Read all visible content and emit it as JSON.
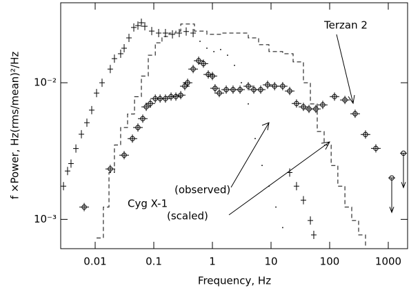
{
  "chart_data": {
    "type": "scatter",
    "xlabel": "Frequency, Hz",
    "ylabel": "f ×Power, Hz(rms/mean)²/Hz",
    "annotations": [
      "Terzan 2",
      "Cyg X-1",
      "(observed)",
      "(scaled)"
    ],
    "xscale": "log",
    "yscale": "log",
    "xlim": [
      0.00258,
      2135
    ],
    "ylim": [
      0.00061,
      0.0385
    ],
    "xticks": [
      0.01,
      0.1,
      1,
      10,
      100,
      1000
    ],
    "yticks": [
      {
        "value": 0.01,
        "label": "10⁻²"
      },
      {
        "value": 0.001,
        "label": "10⁻³"
      }
    ],
    "series": [
      {
        "marker": "plus",
        "color": "#000",
        "x": [
          0.00288,
          0.00338,
          0.00387,
          0.00469,
          0.00582,
          0.00722,
          0.00873,
          0.01056,
          0.0131,
          0.0181,
          0.0213,
          0.0272,
          0.0312,
          0.0377,
          0.0456,
          0.0536,
          0.0614,
          0.0703,
          0.0922,
          0.121,
          0.158,
          0.208,
          0.272,
          0.357,
          0.469
        ],
        "values": [
          0.00175,
          0.00226,
          0.00256,
          0.0033,
          0.0042,
          0.0051,
          0.0063,
          0.0084,
          0.01,
          0.0126,
          0.015,
          0.0163,
          0.0179,
          0.0213,
          0.0254,
          0.0262,
          0.0275,
          0.0259,
          0.0239,
          0.0231,
          0.0231,
          0.0226,
          0.0231,
          0.0237,
          0.0231
        ]
      },
      {
        "marker": "dot",
        "color": "#000",
        "x": [
          0.614,
          0.805,
          1.06,
          1.38,
          1.81,
          2.38,
          3.12,
          4.09,
          5.36,
          7.03,
          9.22,
          12.1,
          15.8
        ],
        "values": [
          0.0201,
          0.0179,
          0.0169,
          0.0175,
          0.0159,
          0.0134,
          0.01,
          0.007,
          0.0039,
          0.00248,
          0.00175,
          0.00123,
          0.00087
        ]
      },
      {
        "marker": "plus",
        "color": "#000",
        "x": [
          20.8,
          27.2,
          35.7,
          46.9,
          53.6
        ],
        "values": [
          0.0022,
          0.00175,
          0.00138,
          0.00098,
          0.00077
        ]
      },
      {
        "marker": "step",
        "color": "#000",
        "x": [
          0.01056,
          0.0138,
          0.0172,
          0.0213,
          0.0272,
          0.0357,
          0.0469,
          0.0614,
          0.0805,
          0.106,
          0.138,
          0.182,
          0.238,
          0.288,
          0.377,
          0.494,
          0.805,
          1.38,
          2.38,
          4.09,
          6.14,
          9.22,
          15.8,
          23.8,
          35.7,
          46.9,
          61.4,
          80.5,
          106,
          138,
          182,
          238,
          312,
          409
        ],
        "values": [
          0.00073,
          0.00123,
          0.0022,
          0.0035,
          0.0047,
          0.0059,
          0.0079,
          0.0112,
          0.0159,
          0.0196,
          0.0218,
          0.0231,
          0.0239,
          0.0269,
          0.0269,
          0.0239,
          0.0226,
          0.0231,
          0.0231,
          0.0213,
          0.019,
          0.0169,
          0.0163,
          0.0142,
          0.01,
          0.007,
          0.0044,
          0.0035,
          0.00248,
          0.00175,
          0.00123,
          0.00098,
          0.00077,
          0.0006
        ]
      },
      {
        "marker": "circle",
        "color": "#000",
        "x": [
          0.00649,
          0.0181,
          0.0312,
          0.0432,
          0.0536,
          0.0648,
          0.0743,
          0.0873,
          0.106,
          0.128,
          0.158,
          0.197,
          0.238,
          0.288,
          0.338,
          0.377,
          0.469,
          0.582,
          0.703,
          0.85,
          1.0,
          1.11,
          1.31,
          1.72,
          2.25,
          2.96,
          4.09,
          5.08,
          6.66,
          8.73,
          11.5,
          15.8,
          20.8,
          27.2,
          35.7,
          44.4,
          58.2,
          76.2,
          121,
          182,
          272,
          409,
          614
        ],
        "values": [
          0.00123,
          0.00234,
          0.00295,
          0.0039,
          0.0047,
          0.00546,
          0.00666,
          0.00705,
          0.00765,
          0.00765,
          0.00765,
          0.00792,
          0.00792,
          0.00811,
          0.00944,
          0.01,
          0.0126,
          0.0145,
          0.0138,
          0.0115,
          0.0112,
          0.00911,
          0.0084,
          0.0089,
          0.0089,
          0.0089,
          0.00944,
          0.0089,
          0.0089,
          0.00966,
          0.00944,
          0.00944,
          0.0087,
          0.00705,
          0.00666,
          0.00643,
          0.00643,
          0.00689,
          0.00792,
          0.00748,
          0.00593,
          0.00418,
          0.00331
        ]
      },
      {
        "marker": "upper_limit",
        "color": "#000",
        "x": [
          1146,
          1816
        ],
        "values": [
          0.00201,
          0.00305
        ]
      }
    ]
  }
}
